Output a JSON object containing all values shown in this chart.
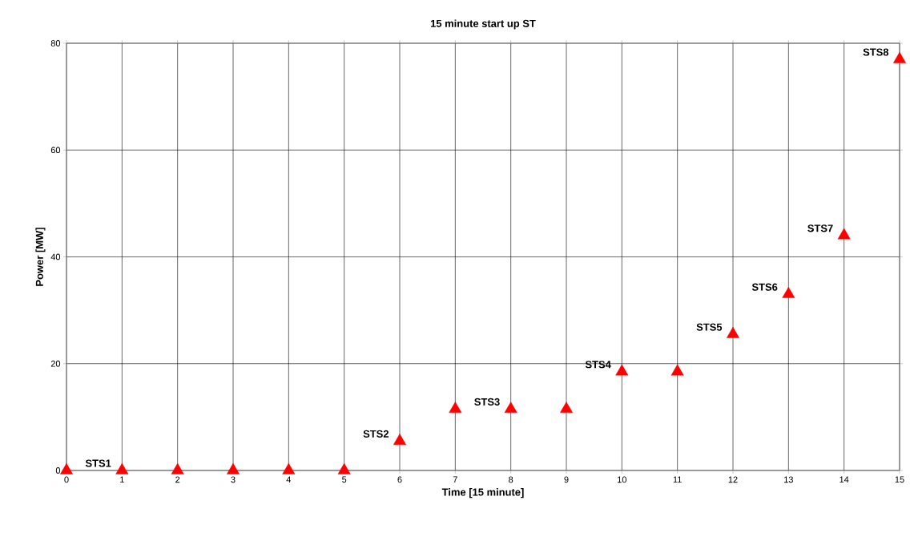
{
  "chart_data": {
    "type": "scatter",
    "title": "15 minute start up ST",
    "xlabel": "Time [15 minute]",
    "ylabel": "Power [MW]",
    "x": [
      0,
      1,
      2,
      3,
      4,
      5,
      6,
      7,
      8,
      9,
      10,
      11,
      12,
      13,
      14,
      15
    ],
    "values": [
      0,
      0,
      0,
      0,
      0,
      0,
      5.5,
      11.5,
      11.5,
      11.5,
      18.5,
      18.5,
      25.5,
      33,
      44,
      77
    ],
    "color": "#ff0000",
    "marker": "triangle",
    "grid": true,
    "xlim": [
      0,
      15
    ],
    "xticks": [
      0,
      1,
      2,
      3,
      4,
      5,
      6,
      7,
      8,
      9,
      10,
      11,
      12,
      13,
      14,
      15
    ],
    "ylim": [
      0,
      80
    ],
    "yticks": [
      0,
      20,
      40,
      60,
      80
    ],
    "annotations": [
      {
        "text": "STS1",
        "x": 1,
        "y": 0
      },
      {
        "text": "STS2",
        "x": 6,
        "y": 5.5
      },
      {
        "text": "STS3",
        "x": 8,
        "y": 11.5
      },
      {
        "text": "STS4",
        "x": 10,
        "y": 18.5
      },
      {
        "text": "STS5",
        "x": 12,
        "y": 25.5
      },
      {
        "text": "STS6",
        "x": 13,
        "y": 33
      },
      {
        "text": "STS7",
        "x": 14,
        "y": 44
      },
      {
        "text": "STS8",
        "x": 15,
        "y": 77
      }
    ]
  }
}
